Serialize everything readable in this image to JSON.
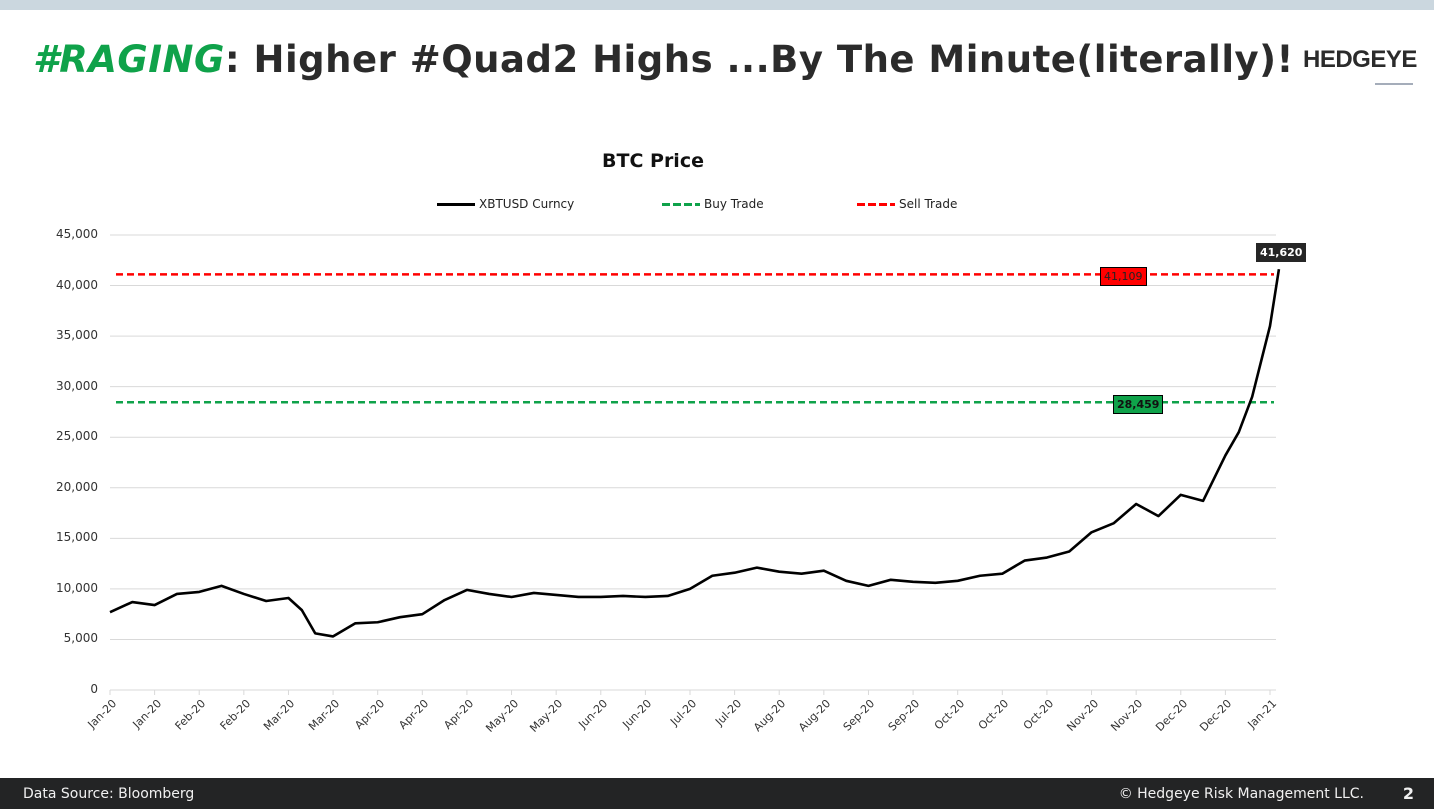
{
  "header": {
    "title_tag": "#RAGING",
    "title_rest": ": Higher #Quad2 Highs ...By The Minute(literally)!",
    "brand": "HEDGEYE"
  },
  "footer": {
    "source": "Data Source: Bloomberg",
    "copyright": "© Hedgeye Risk Management LLC.",
    "page_number": "2"
  },
  "colors": {
    "accent_green": "#0fa24a",
    "sell_red": "#ff0000",
    "line_black": "#000000",
    "footer_bg": "#232425",
    "top_strip": "#cbd7df"
  },
  "chart_data": {
    "type": "line",
    "title": "BTC Price",
    "xlabel": "",
    "ylabel": "",
    "ylim": [
      0,
      45000
    ],
    "grid": true,
    "legend_position": "top",
    "legend": [
      "XBTUSD Curncy",
      "Buy Trade",
      "Sell Trade"
    ],
    "y_ticks": [
      "45,000",
      "40,000",
      "35,000",
      "30,000",
      "25,000",
      "20,000",
      "15,000",
      "10,000",
      "5,000",
      "0"
    ],
    "x_ticks": [
      "Jan-20",
      "Jan-20",
      "Feb-20",
      "Feb-20",
      "Mar-20",
      "Mar-20",
      "Apr-20",
      "Apr-20",
      "Apr-20",
      "May-20",
      "May-20",
      "Jun-20",
      "Jun-20",
      "Jul-20",
      "Jul-20",
      "Aug-20",
      "Aug-20",
      "Sep-20",
      "Sep-20",
      "Oct-20",
      "Oct-20",
      "Oct-20",
      "Nov-20",
      "Nov-20",
      "Dec-20",
      "Dec-20",
      "Jan-21"
    ],
    "series": [
      {
        "name": "XBTUSD Curncy",
        "style": "solid",
        "color": "#000000",
        "x_index": [
          0,
          0.5,
          1,
          1.5,
          2,
          2.5,
          3,
          3.5,
          4,
          4.3,
          4.6,
          5,
          5.5,
          6,
          6.5,
          7,
          7.5,
          8,
          8.5,
          9,
          9.5,
          10,
          10.5,
          11,
          11.5,
          12,
          12.5,
          13,
          13.5,
          14,
          14.5,
          15,
          15.5,
          16,
          16.5,
          17,
          17.5,
          18,
          18.5,
          19,
          19.5,
          20,
          20.5,
          21,
          21.5,
          22,
          22.5,
          23,
          23.5,
          24,
          24.5,
          25,
          25.3,
          25.6,
          26,
          26.2
        ],
        "values": [
          7700,
          8700,
          8400,
          9500,
          9700,
          10300,
          9500,
          8800,
          9100,
          7900,
          5600,
          5300,
          6600,
          6700,
          7200,
          7500,
          8900,
          9900,
          9500,
          9200,
          9600,
          9400,
          9200,
          9200,
          9300,
          9200,
          9300,
          10000,
          11300,
          11600,
          12100,
          11700,
          11500,
          11800,
          10800,
          10300,
          10900,
          10700,
          10600,
          10800,
          11300,
          11500,
          12800,
          13100,
          13700,
          15600,
          16500,
          18400,
          17200,
          19300,
          18700,
          23200,
          25500,
          29000,
          36000,
          41620
        ]
      },
      {
        "name": "Buy Trade",
        "style": "dashed",
        "color": "#0fa24a",
        "values": [
          28459
        ],
        "label": "28,459"
      },
      {
        "name": "Sell Trade",
        "style": "dashed",
        "color": "#ff0000",
        "values": [
          41109
        ],
        "label": "41,109"
      }
    ],
    "annotations": [
      {
        "text": "41,620",
        "type": "last-value",
        "value": 41620
      },
      {
        "text": "41,109",
        "type": "sell-trade-level",
        "value": 41109
      },
      {
        "text": "28,459",
        "type": "buy-trade-level",
        "value": 28459
      }
    ]
  }
}
